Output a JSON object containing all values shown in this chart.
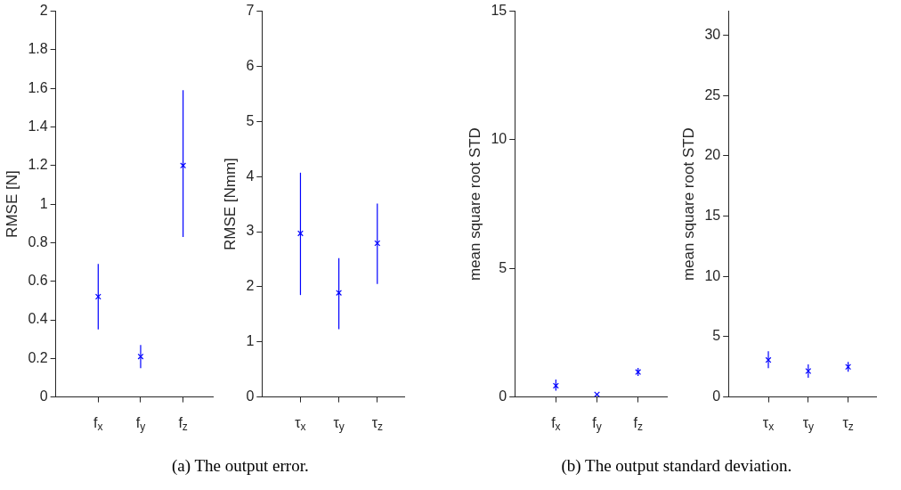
{
  "chart_data": [
    {
      "type": "scatter",
      "ylabel": "RMSE [N]",
      "categories": [
        "f$_{x}$",
        "f$_{y}$",
        "f$_{z}$"
      ],
      "ylim": [
        0,
        2
      ],
      "yticks": [
        0,
        0.2,
        0.4,
        0.6,
        0.8,
        1,
        1.2,
        1.4,
        1.6,
        1.8,
        2
      ],
      "marker": "cross",
      "grid": false,
      "legend": false,
      "series": [
        {
          "color": "#0000ff",
          "values": [
            0.52,
            0.21,
            1.2
          ],
          "errors": [
            [
              0.35,
              0.69
            ],
            [
              0.15,
              0.27
            ],
            [
              0.83,
              1.59
            ]
          ]
        }
      ],
      "annotations": [
        "(a)  The output error."
      ]
    },
    {
      "type": "scatter",
      "ylabel": "RMSE [Nmm]",
      "categories": [
        "τ$_{x}$",
        "τ$_{y}$",
        "τ$_{z}$"
      ],
      "ylim": [
        0,
        7
      ],
      "yticks": [
        0,
        1,
        2,
        3,
        4,
        5,
        6,
        7
      ],
      "marker": "cross",
      "grid": false,
      "legend": false,
      "series": [
        {
          "color": "#0000ff",
          "values": [
            2.97,
            1.89,
            2.79
          ],
          "errors": [
            [
              1.85,
              4.07
            ],
            [
              1.23,
              2.52
            ],
            [
              2.05,
              3.51
            ]
          ]
        }
      ]
    },
    {
      "type": "scatter",
      "ylabel": "mean square root STD",
      "categories": [
        "f$_{x}$",
        "f$_{y}$",
        "f$_{z}$"
      ],
      "ylim": [
        0,
        15
      ],
      "yticks": [
        0,
        5,
        10,
        15
      ],
      "marker": "cross",
      "grid": false,
      "legend": false,
      "series": [
        {
          "color": "#0000ff",
          "values": [
            0.44,
            0.1,
            0.97
          ],
          "errors": [
            [
              0.25,
              0.68
            ],
            null,
            [
              0.82,
              1.13
            ]
          ]
        }
      ],
      "annotations": [
        "(b)  The output standard deviation."
      ]
    },
    {
      "type": "scatter",
      "ylabel": "mean square root STD",
      "categories": [
        "τ$_{x}$",
        "τ$_{y}$",
        "τ$_{z}$"
      ],
      "ylim": [
        0,
        32
      ],
      "yticks": [
        0,
        5,
        10,
        15,
        20,
        25,
        30
      ],
      "marker": "cross",
      "grid": false,
      "legend": false,
      "series": [
        {
          "color": "#0000ff",
          "values": [
            3.07,
            2.15,
            2.5
          ],
          "errors": [
            [
              2.4,
              3.8
            ],
            [
              1.6,
              2.7
            ],
            [
              2.1,
              2.9
            ]
          ]
        }
      ]
    }
  ]
}
